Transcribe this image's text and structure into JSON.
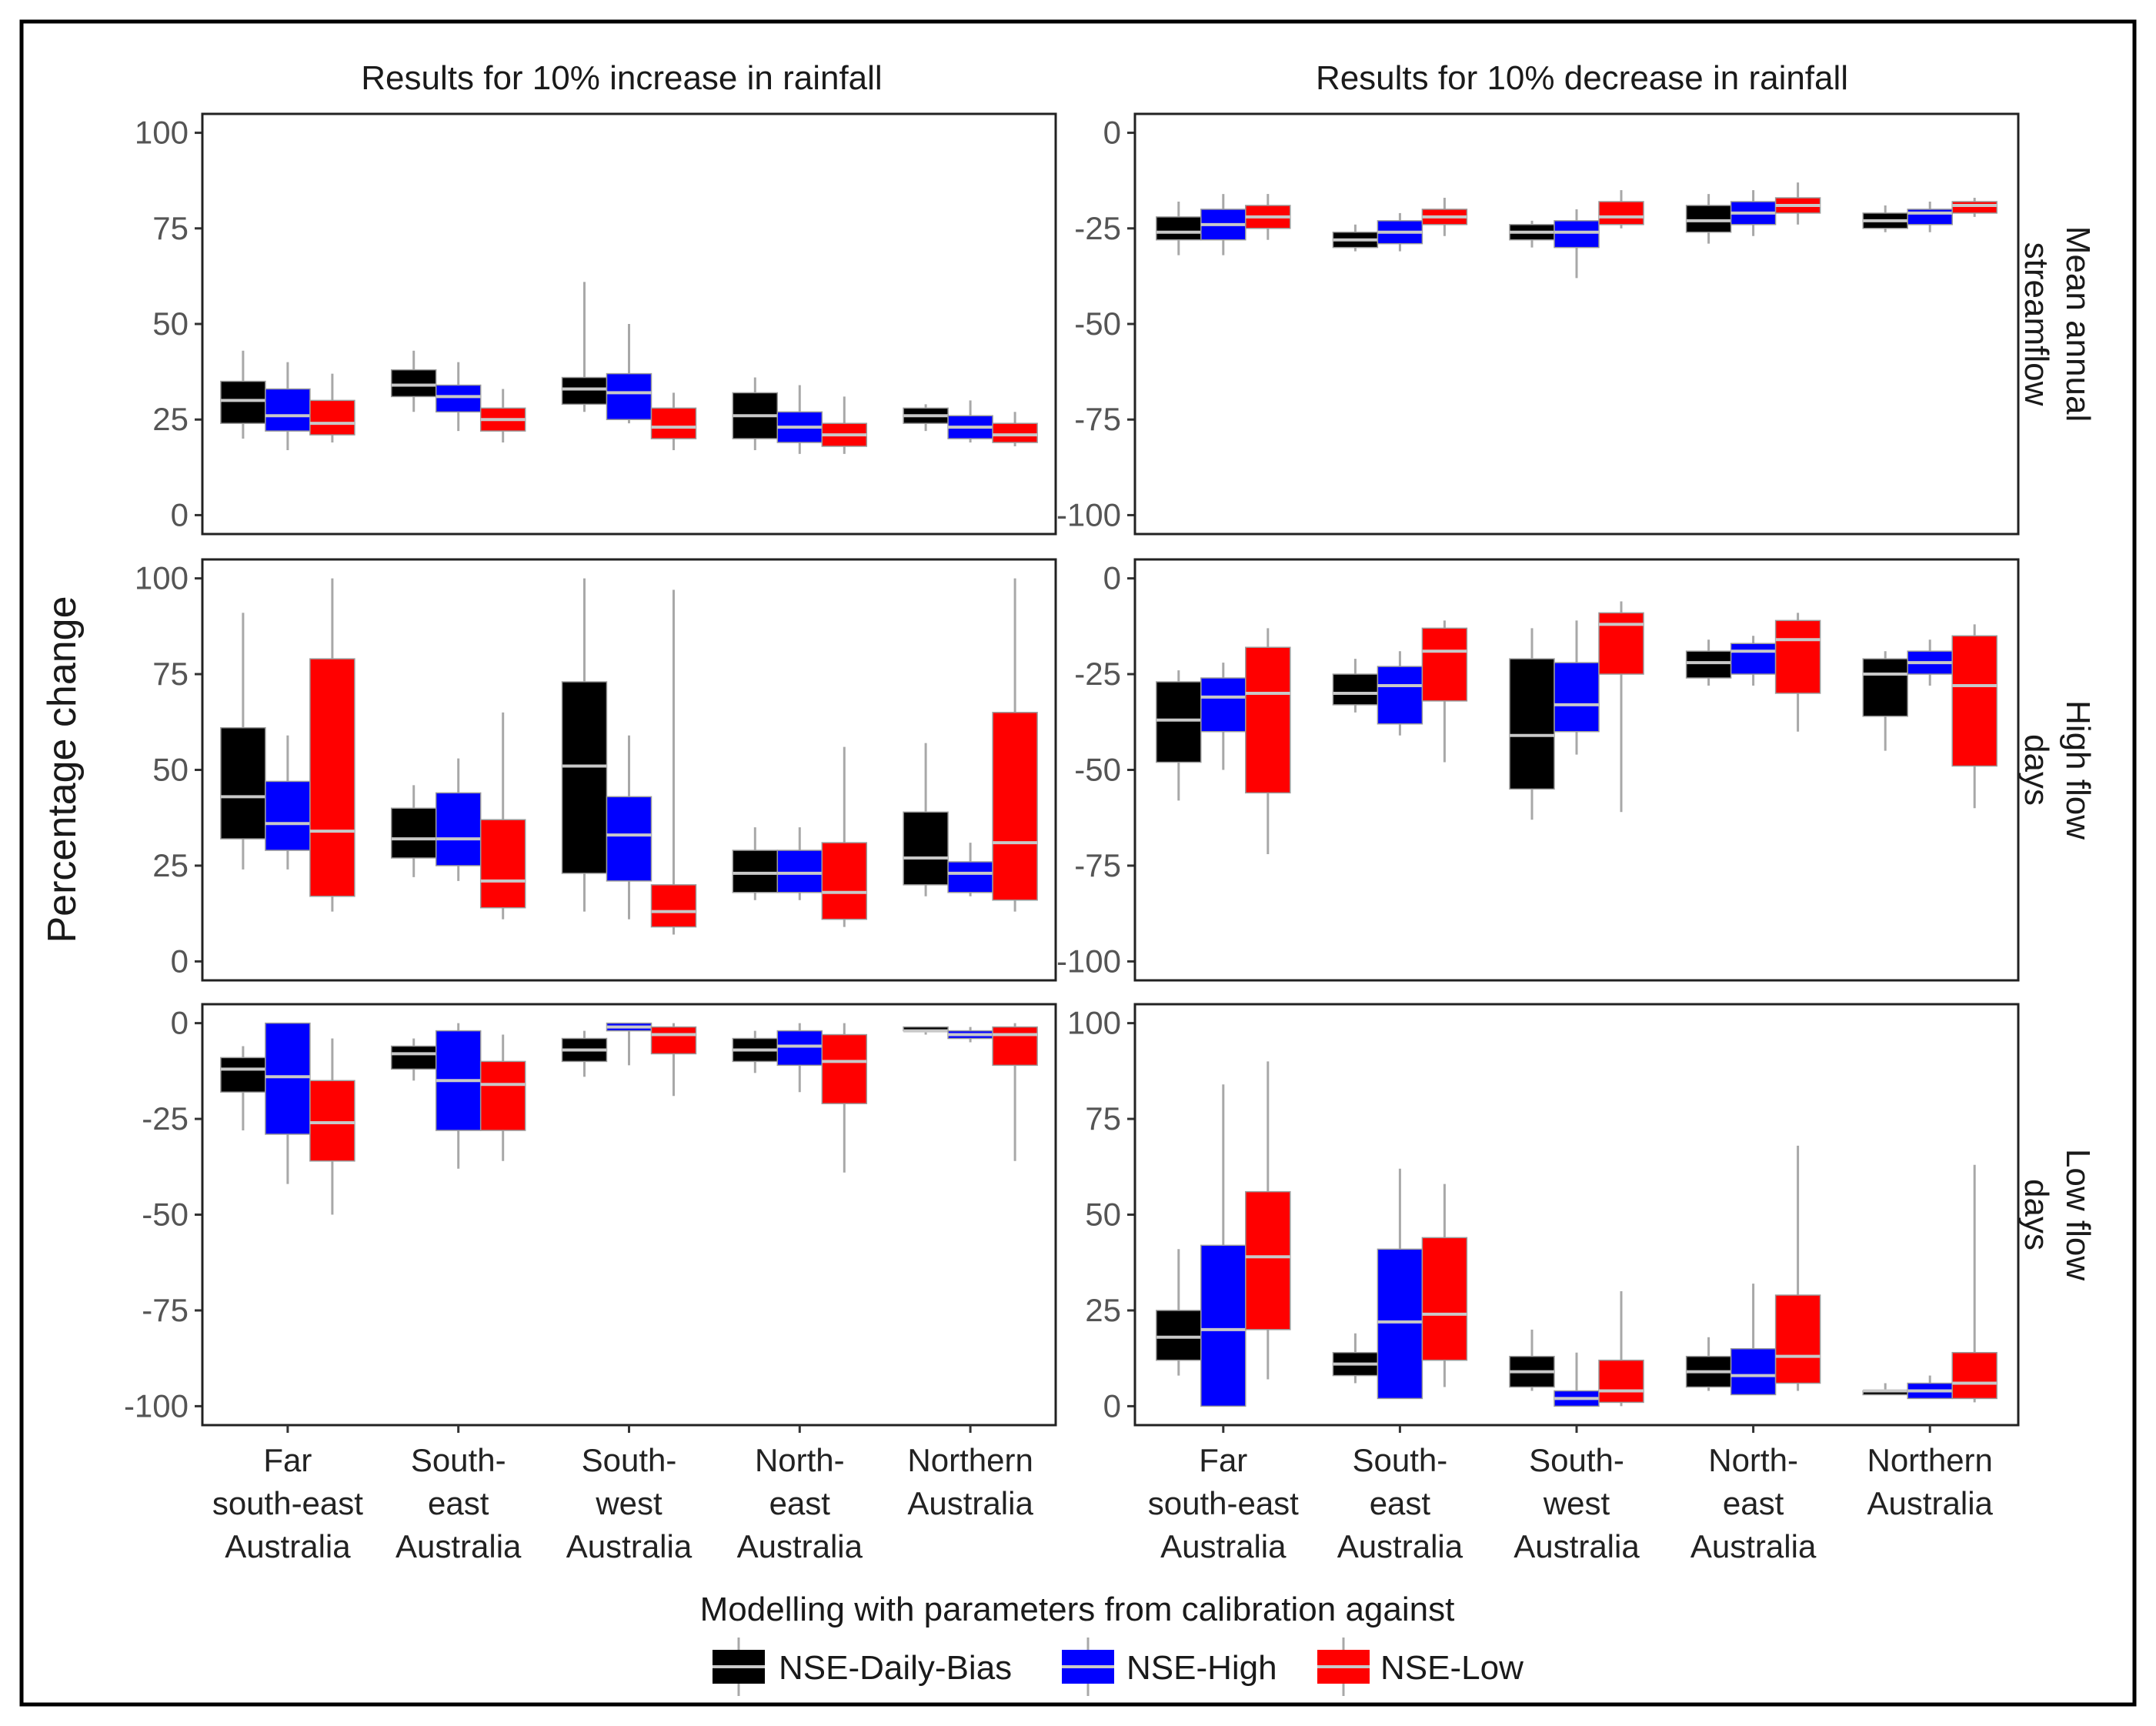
{
  "chart_data": {
    "type": "box",
    "ylabel": "Percentage change",
    "columns": [
      "Results for 10% increase in rainfall",
      "Results for 10% decrease in rainfall"
    ],
    "rows": [
      "Mean annual streamflow",
      "High flow days",
      "Low flow days"
    ],
    "categories": [
      [
        "Far",
        "south-east",
        "Australia"
      ],
      [
        "South-",
        "east",
        "Australia"
      ],
      [
        "South-",
        "west",
        "Australia"
      ],
      [
        "North-",
        "east",
        "Australia"
      ],
      [
        "Northern",
        "Australia"
      ]
    ],
    "legend": {
      "title": "Modelling with parameters from calibration against",
      "items": [
        {
          "name": "NSE-Daily-Bias",
          "color": "#000000"
        },
        {
          "name": "NSE-High",
          "color": "#0000ff"
        },
        {
          "name": "NSE-Low",
          "color": "#ff0000"
        }
      ]
    },
    "panels": [
      {
        "column": 0,
        "row": 0,
        "ylim": [
          0,
          100
        ],
        "ticks": [
          0,
          25,
          50,
          75,
          100
        ],
        "boxes": [
          [
            [
              20,
              24,
              30,
              35,
              43
            ],
            [
              17,
              22,
              26,
              33,
              40
            ],
            [
              19,
              21,
              24,
              30,
              37
            ]
          ],
          [
            [
              27,
              31,
              34,
              38,
              43
            ],
            [
              22,
              27,
              31,
              34,
              40
            ],
            [
              19,
              22,
              25,
              28,
              33
            ]
          ],
          [
            [
              27,
              29,
              33,
              36,
              61
            ],
            [
              24,
              25,
              32,
              37,
              50
            ],
            [
              17,
              20,
              23,
              28,
              32
            ]
          ],
          [
            [
              17,
              20,
              26,
              32,
              36
            ],
            [
              16,
              19,
              23,
              27,
              34
            ],
            [
              16,
              18,
              21,
              24,
              31
            ]
          ],
          [
            [
              22,
              24,
              26,
              28,
              29
            ],
            [
              19,
              20,
              23,
              26,
              30
            ],
            [
              18,
              19,
              21,
              24,
              27
            ]
          ]
        ]
      },
      {
        "column": 1,
        "row": 0,
        "ylim": [
          -100,
          0
        ],
        "ticks": [
          -100,
          -75,
          -50,
          -25,
          0
        ],
        "boxes": [
          [
            [
              -32,
              -28,
              -26,
              -22,
              -18
            ],
            [
              -32,
              -28,
              -24,
              -20,
              -16
            ],
            [
              -28,
              -25,
              -22,
              -19,
              -16
            ]
          ],
          [
            [
              -31,
              -30,
              -28,
              -26,
              -24
            ],
            [
              -31,
              -29,
              -26,
              -23,
              -21
            ],
            [
              -27,
              -24,
              -22,
              -20,
              -17
            ]
          ],
          [
            [
              -30,
              -28,
              -26,
              -24,
              -23
            ],
            [
              -38,
              -30,
              -26,
              -23,
              -20
            ],
            [
              -25,
              -24,
              -22,
              -18,
              -15
            ]
          ],
          [
            [
              -29,
              -26,
              -23,
              -19,
              -16
            ],
            [
              -27,
              -24,
              -21,
              -18,
              -15
            ],
            [
              -24,
              -21,
              -19,
              -17,
              -13
            ]
          ],
          [
            [
              -26,
              -25,
              -23,
              -21,
              -19
            ],
            [
              -26,
              -24,
              -21,
              -20,
              -18
            ],
            [
              -22,
              -21,
              -19,
              -18,
              -17
            ]
          ]
        ]
      },
      {
        "column": 0,
        "row": 1,
        "ylim": [
          0,
          100
        ],
        "ticks": [
          0,
          25,
          50,
          75,
          100
        ],
        "boxes": [
          [
            [
              24,
              32,
              43,
              61,
              91
            ],
            [
              24,
              29,
              36,
              47,
              59
            ],
            [
              13,
              17,
              34,
              79,
              100
            ]
          ],
          [
            [
              22,
              27,
              32,
              40,
              46
            ],
            [
              21,
              25,
              32,
              44,
              53
            ],
            [
              11,
              14,
              21,
              37,
              65
            ]
          ],
          [
            [
              13,
              23,
              51,
              73,
              100
            ],
            [
              11,
              21,
              33,
              43,
              59
            ],
            [
              7,
              9,
              13,
              20,
              97
            ]
          ],
          [
            [
              16,
              18,
              23,
              29,
              35
            ],
            [
              16,
              18,
              23,
              29,
              35
            ],
            [
              9,
              11,
              18,
              31,
              56
            ]
          ],
          [
            [
              17,
              20,
              27,
              39,
              57
            ],
            [
              17,
              18,
              23,
              26,
              31
            ],
            [
              13,
              16,
              31,
              65,
              100
            ]
          ]
        ]
      },
      {
        "column": 1,
        "row": 1,
        "ylim": [
          -100,
          0
        ],
        "ticks": [
          -100,
          -75,
          -50,
          -25,
          0
        ],
        "boxes": [
          [
            [
              -58,
              -48,
              -37,
              -27,
              -24
            ],
            [
              -50,
              -40,
              -31,
              -26,
              -22
            ],
            [
              -72,
              -56,
              -30,
              -18,
              -13
            ]
          ],
          [
            [
              -35,
              -33,
              -30,
              -25,
              -21
            ],
            [
              -41,
              -38,
              -28,
              -23,
              -19
            ],
            [
              -48,
              -32,
              -19,
              -13,
              -11
            ]
          ],
          [
            [
              -63,
              -55,
              -41,
              -21,
              -13
            ],
            [
              -46,
              -40,
              -33,
              -22,
              -11
            ],
            [
              -61,
              -25,
              -12,
              -9,
              -6
            ]
          ],
          [
            [
              -28,
              -26,
              -22,
              -19,
              -16
            ],
            [
              -28,
              -25,
              -19,
              -17,
              -15
            ],
            [
              -40,
              -30,
              -16,
              -11,
              -9
            ]
          ],
          [
            [
              -45,
              -36,
              -25,
              -21,
              -19
            ],
            [
              -28,
              -25,
              -22,
              -19,
              -16
            ],
            [
              -60,
              -49,
              -28,
              -15,
              -12
            ]
          ]
        ]
      },
      {
        "column": 0,
        "row": 2,
        "ylim": [
          -100,
          0
        ],
        "ticks": [
          -100,
          -75,
          -50,
          -25,
          0
        ],
        "boxes": [
          [
            [
              -28,
              -18,
              -12,
              -9,
              -6
            ],
            [
              -42,
              -29,
              -14,
              0,
              0
            ],
            [
              -50,
              -36,
              -26,
              -15,
              -4
            ]
          ],
          [
            [
              -15,
              -12,
              -8,
              -6,
              -4
            ],
            [
              -38,
              -28,
              -15,
              -2,
              0
            ],
            [
              -36,
              -28,
              -16,
              -10,
              -3
            ]
          ],
          [
            [
              -14,
              -10,
              -7,
              -4,
              -2
            ],
            [
              -11,
              -2,
              -1,
              0,
              0
            ],
            [
              -19,
              -8,
              -3,
              -1,
              0
            ]
          ],
          [
            [
              -13,
              -10,
              -7,
              -4,
              -2
            ],
            [
              -18,
              -11,
              -6,
              -2,
              0
            ],
            [
              -39,
              -21,
              -10,
              -3,
              0
            ]
          ],
          [
            [
              -3,
              -2,
              -2,
              -1,
              -1
            ],
            [
              -5,
              -4,
              -3,
              -2,
              -1
            ],
            [
              -36,
              -11,
              -3,
              -1,
              0
            ]
          ]
        ]
      },
      {
        "column": 1,
        "row": 2,
        "ylim": [
          0,
          100
        ],
        "ticks": [
          0,
          25,
          50,
          75,
          100
        ],
        "boxes": [
          [
            [
              8,
              12,
              18,
              25,
              41
            ],
            [
              0,
              0,
              20,
              42,
              84
            ],
            [
              7,
              20,
              39,
              56,
              90
            ]
          ],
          [
            [
              6,
              8,
              11,
              14,
              19
            ],
            [
              2,
              2,
              22,
              41,
              62
            ],
            [
              5,
              12,
              24,
              44,
              58
            ]
          ],
          [
            [
              4,
              5,
              9,
              13,
              20
            ],
            [
              0,
              0,
              2,
              4,
              14
            ],
            [
              0,
              1,
              4,
              12,
              30
            ]
          ],
          [
            [
              4,
              5,
              9,
              13,
              18
            ],
            [
              3,
              3,
              8,
              15,
              32
            ],
            [
              4,
              6,
              13,
              29,
              68
            ]
          ],
          [
            [
              3,
              3,
              4,
              4,
              6
            ],
            [
              2,
              2,
              4,
              6,
              8
            ],
            [
              1,
              2,
              6,
              14,
              63
            ]
          ]
        ]
      }
    ]
  }
}
